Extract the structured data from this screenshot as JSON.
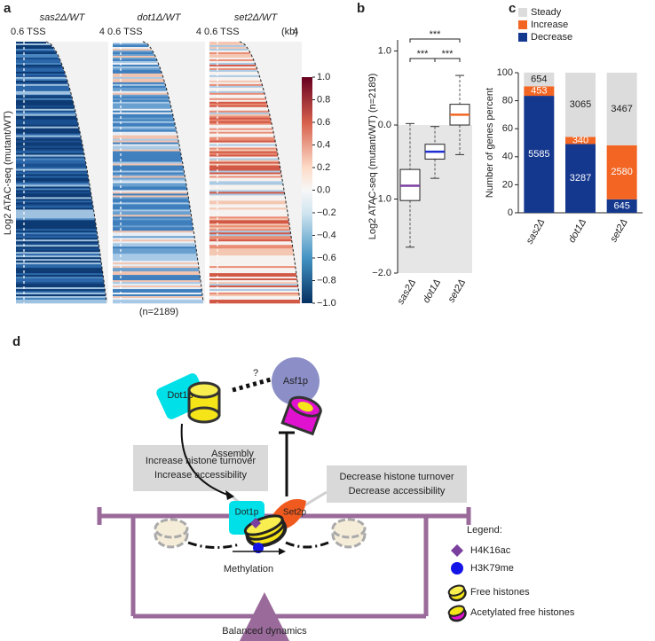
{
  "panel_a": {
    "letter": "a",
    "titles": [
      "sas2Δ/WT",
      "dot1Δ/WT",
      "set2Δ/WT"
    ],
    "start_label": "0.6 TSS",
    "end_label": "4",
    "unit": "(kb)",
    "ylabel": "Log2 ATAC-seq (mutant/WT)",
    "n_label": "(n=2189)",
    "colorbar_lim": [
      -1,
      1
    ],
    "colorbar_ticks": [
      {
        "value": 1,
        "label": "1.0"
      },
      {
        "value": 0.8,
        "label": "0.8"
      },
      {
        "value": 0.6,
        "label": "0.6"
      },
      {
        "value": 0.4,
        "label": "0.4"
      },
      {
        "value": 0.2,
        "label": "0.2"
      },
      {
        "value": 0,
        "label": "0.0"
      },
      {
        "value": -0.2,
        "label": "−0.2"
      },
      {
        "value": -0.4,
        "label": "−0.4"
      },
      {
        "value": -0.6,
        "label": "−0.6"
      },
      {
        "value": -0.8,
        "label": "−0.8"
      },
      {
        "value": -1,
        "label": "−1.0"
      }
    ]
  },
  "chart_data": [
    {
      "type": "box",
      "letter": "b",
      "ylabel": "Log2 ATAC-seq (mutant/WT) (n=2189)",
      "categories": [
        "sas2Δ",
        "dot1Δ",
        "set2Δ"
      ],
      "min": [
        -1.65,
        -0.72,
        -0.4
      ],
      "q1": [
        -1.02,
        -0.46,
        0.0
      ],
      "median": [
        -0.82,
        -0.36,
        0.14
      ],
      "q3": [
        -0.6,
        -0.26,
        0.28
      ],
      "max": [
        0.02,
        -0.02,
        0.67
      ],
      "median_colors": [
        "#7b3fa0",
        "#1f2fd0",
        "#f26522"
      ],
      "ylim": [
        -2,
        1.15
      ],
      "yticks": [
        {
          "value": 1,
          "label": "1.0"
        },
        {
          "value": 0,
          "label": "0.0"
        },
        {
          "value": -1,
          "label": "−1.0"
        },
        {
          "value": -2,
          "label": "−2.0"
        }
      ],
      "annotations": [
        "***",
        "***",
        "***"
      ]
    },
    {
      "type": "stacked_bar",
      "letter": "c",
      "ylabel": "Number of genes percent",
      "categories": [
        "sas2Δ",
        "dot1Δ",
        "set2Δ"
      ],
      "series": [
        {
          "name": "Decrease",
          "color": "#15388f",
          "values": [
            83.5,
            49.1,
            9.6
          ],
          "counts": [
            5585,
            3287,
            645
          ]
        },
        {
          "name": "Increase",
          "color": "#f26522",
          "values": [
            6.8,
            5.1,
            38.6
          ],
          "counts": [
            453,
            340,
            2580
          ]
        },
        {
          "name": "Steady",
          "color": "#dcdcdc",
          "values": [
            9.8,
            45.8,
            51.8
          ],
          "counts": [
            654,
            3065,
            3467
          ]
        }
      ],
      "ylim": [
        0,
        100
      ],
      "yticks": [
        0,
        20,
        40,
        60,
        80,
        100
      ]
    }
  ],
  "panel_d": {
    "letter": "d",
    "dot1p_top": "Dot1p",
    "asf1p": "Asf1p",
    "question": "?",
    "assembly": "Assembly",
    "left_box": [
      "Increase histone turnover",
      "Increase accessibility"
    ],
    "right_box": [
      "Decrease histone turnover",
      "Decrease accessibility"
    ],
    "dot1p": "Dot1p",
    "set2p": "Set2p",
    "methylation": "Methylation",
    "balanced": "Balanced dynamics",
    "legend_title": "Legend:",
    "legend": [
      "H4K16ac",
      "H3K79me",
      "Free histones",
      "Acetylated free histones"
    ]
  }
}
